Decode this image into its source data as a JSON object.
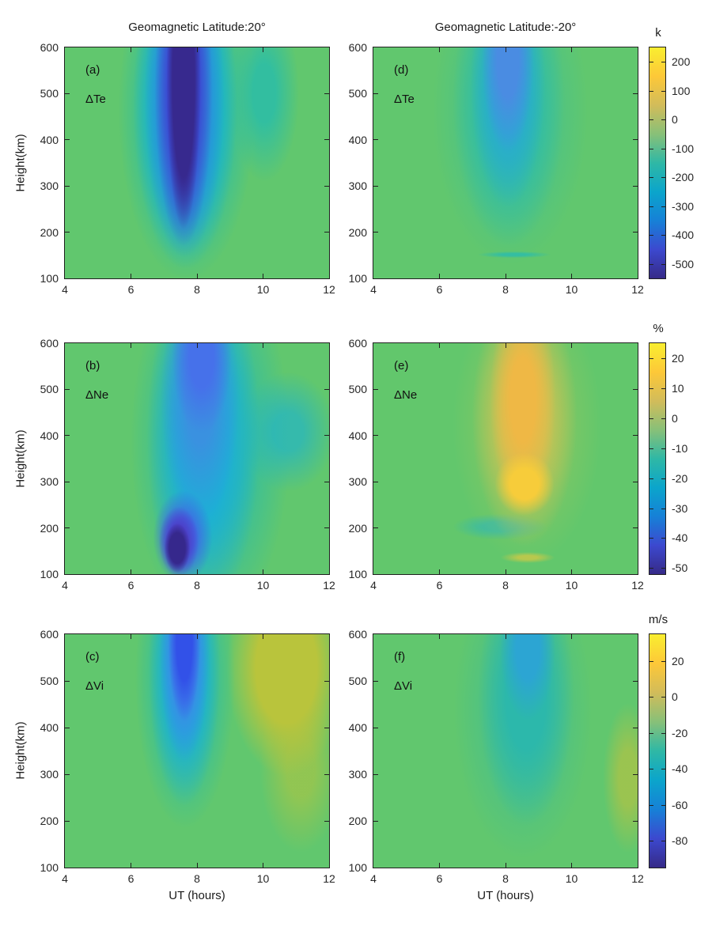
{
  "figure": {
    "titles": {
      "left": "Geomagnetic Latitude:20°",
      "right": "Geomagnetic Latitude:-20°"
    },
    "xlabel": "UT (hours)",
    "ylabel": "Height(km)",
    "x_ticks": [
      "4",
      "6",
      "8",
      "10",
      "12"
    ],
    "y_ticks": [
      "600",
      "500",
      "400",
      "300",
      "200",
      "100"
    ]
  },
  "panels": [
    {
      "tag": "(a)",
      "variable": "ΔTe"
    },
    {
      "tag": "(b)",
      "variable": "ΔNe"
    },
    {
      "tag": "(c)",
      "variable": "ΔVi"
    },
    {
      "tag": "(d)",
      "variable": "ΔTe"
    },
    {
      "tag": "(e)",
      "variable": "ΔNe"
    },
    {
      "tag": "(f)",
      "variable": "ΔVi"
    }
  ],
  "colorbars": [
    {
      "unit": "k",
      "max": 250,
      "min": -550,
      "ticks": [
        "200",
        "100",
        "0",
        "-100",
        "-200",
        "-300",
        "-400",
        "-500"
      ],
      "tick_values": [
        200,
        100,
        0,
        -100,
        -200,
        -300,
        -400,
        -500
      ]
    },
    {
      "unit": "%",
      "max": 25,
      "min": -52,
      "ticks": [
        "20",
        "10",
        "0",
        "-10",
        "-20",
        "-30",
        "-40",
        "-50"
      ],
      "tick_values": [
        20,
        10,
        0,
        -10,
        -20,
        -30,
        -40,
        -50
      ]
    },
    {
      "unit": "m/s",
      "max": 35,
      "min": -95,
      "ticks": [
        "20",
        "0",
        "-20",
        "-40",
        "-60",
        "-80"
      ],
      "tick_values": [
        20,
        0,
        -20,
        -40,
        -60,
        -80
      ]
    }
  ],
  "colors": {
    "background": "#ffffff",
    "zero_level_green": "#61c76e",
    "axis": "#202020",
    "text": "#262626",
    "colormap": "parula"
  },
  "chart_data": [
    {
      "type": "heatmap",
      "panel": "(a)",
      "title": "Geomagnetic Latitude:20°",
      "variable": "ΔTe",
      "unit": "k",
      "colormap": "parula",
      "xlabel": "UT (hours)",
      "ylabel": "Height(km)",
      "xlim": [
        4,
        12
      ],
      "ylim": [
        100,
        600
      ],
      "caxis": [
        -550,
        250
      ],
      "x": [
        4,
        5,
        6,
        7,
        7.5,
        8,
        9,
        10,
        11,
        12
      ],
      "y": [
        100,
        200,
        300,
        400,
        500,
        600
      ],
      "values": [
        [
          0,
          0,
          0,
          -10,
          -20,
          -10,
          0,
          0,
          0,
          0
        ],
        [
          0,
          0,
          -50,
          -350,
          -450,
          -350,
          -80,
          -10,
          0,
          0
        ],
        [
          0,
          0,
          -60,
          -450,
          -550,
          -400,
          -100,
          -20,
          0,
          0
        ],
        [
          0,
          0,
          -70,
          -450,
          -550,
          -400,
          -120,
          -40,
          -10,
          0
        ],
        [
          0,
          0,
          -70,
          -430,
          -540,
          -400,
          -130,
          -60,
          -20,
          0
        ],
        [
          0,
          0,
          -70,
          -420,
          -540,
          -400,
          -140,
          -60,
          -20,
          0
        ]
      ]
    },
    {
      "type": "heatmap",
      "panel": "(b)",
      "title": "Geomagnetic Latitude:20°",
      "variable": "ΔNe",
      "unit": "%",
      "colormap": "parula",
      "xlabel": "UT (hours)",
      "ylabel": "Height(km)",
      "xlim": [
        4,
        12
      ],
      "ylim": [
        100,
        600
      ],
      "caxis": [
        -52,
        25
      ],
      "x": [
        4,
        5,
        6,
        7,
        7.5,
        8,
        9,
        10,
        11,
        12
      ],
      "y": [
        100,
        200,
        300,
        400,
        500,
        600
      ],
      "values": [
        [
          0,
          0,
          -5,
          -40,
          -50,
          -20,
          -8,
          -3,
          0,
          0
        ],
        [
          0,
          0,
          -10,
          -35,
          -40,
          -25,
          -12,
          -8,
          -3,
          0
        ],
        [
          0,
          -3,
          -12,
          -20,
          -22,
          -22,
          -15,
          -10,
          -5,
          -3
        ],
        [
          0,
          -3,
          -12,
          -25,
          -28,
          -30,
          -20,
          -12,
          -8,
          -5
        ],
        [
          0,
          -3,
          -10,
          -28,
          -32,
          -33,
          -22,
          -12,
          -8,
          -5
        ],
        [
          0,
          -3,
          -10,
          -25,
          -30,
          -30,
          -20,
          -12,
          -8,
          -5
        ]
      ]
    },
    {
      "type": "heatmap",
      "panel": "(c)",
      "title": "Geomagnetic Latitude:20°",
      "variable": "ΔVi",
      "unit": "m/s",
      "colormap": "parula",
      "xlabel": "UT (hours)",
      "ylabel": "Height(km)",
      "xlim": [
        4,
        12
      ],
      "ylim": [
        100,
        600
      ],
      "caxis": [
        -95,
        35
      ],
      "x": [
        4,
        5,
        6,
        7,
        7.5,
        8,
        9,
        10,
        11,
        12
      ],
      "y": [
        100,
        200,
        300,
        400,
        500,
        600
      ],
      "values": [
        [
          0,
          0,
          0,
          -3,
          -5,
          -3,
          0,
          0,
          0,
          0
        ],
        [
          0,
          0,
          -5,
          -25,
          -30,
          -20,
          -5,
          2,
          2,
          0
        ],
        [
          0,
          0,
          -8,
          -35,
          -45,
          -30,
          -8,
          8,
          8,
          5
        ],
        [
          0,
          0,
          -10,
          -50,
          -60,
          -40,
          -5,
          10,
          10,
          5
        ],
        [
          0,
          0,
          -12,
          -60,
          -75,
          -50,
          0,
          15,
          12,
          5
        ],
        [
          0,
          0,
          -15,
          -70,
          -85,
          -55,
          5,
          18,
          15,
          5
        ]
      ]
    },
    {
      "type": "heatmap",
      "panel": "(d)",
      "title": "Geomagnetic Latitude:-20°",
      "variable": "ΔTe",
      "unit": "k",
      "colormap": "parula",
      "xlabel": "UT (hours)",
      "ylabel": "Height(km)",
      "xlim": [
        4,
        12
      ],
      "ylim": [
        100,
        600
      ],
      "caxis": [
        -550,
        250
      ],
      "x": [
        4,
        5,
        6,
        7,
        7.5,
        8,
        9,
        10,
        11,
        12
      ],
      "y": [
        100,
        200,
        300,
        400,
        500,
        600
      ],
      "values": [
        [
          0,
          0,
          0,
          -10,
          -20,
          -20,
          -10,
          0,
          0,
          0
        ],
        [
          0,
          0,
          -20,
          -60,
          -80,
          -80,
          -50,
          -20,
          0,
          0
        ],
        [
          0,
          -10,
          -40,
          -120,
          -150,
          -140,
          -80,
          -30,
          -10,
          0
        ],
        [
          0,
          -10,
          -50,
          -180,
          -220,
          -200,
          -120,
          -50,
          -10,
          0
        ],
        [
          0,
          -10,
          -60,
          -230,
          -280,
          -250,
          -150,
          -60,
          -20,
          0
        ],
        [
          0,
          -10,
          -70,
          -280,
          -320,
          -280,
          -170,
          -70,
          -20,
          0
        ]
      ]
    },
    {
      "type": "heatmap",
      "panel": "(e)",
      "title": "Geomagnetic Latitude:-20°",
      "variable": "ΔNe",
      "unit": "%",
      "colormap": "parula",
      "xlabel": "UT (hours)",
      "ylabel": "Height(km)",
      "xlim": [
        4,
        12
      ],
      "ylim": [
        100,
        600
      ],
      "caxis": [
        -52,
        25
      ],
      "x": [
        4,
        5,
        6,
        7,
        7.5,
        8,
        9,
        10,
        11,
        12
      ],
      "y": [
        100,
        200,
        300,
        400,
        500,
        600
      ],
      "values": [
        [
          0,
          0,
          0,
          2,
          5,
          5,
          3,
          0,
          0,
          0
        ],
        [
          0,
          0,
          -5,
          -10,
          -10,
          -8,
          -3,
          2,
          0,
          0
        ],
        [
          0,
          2,
          5,
          12,
          20,
          25,
          18,
          8,
          2,
          0
        ],
        [
          0,
          2,
          6,
          12,
          18,
          20,
          15,
          6,
          0,
          -2
        ],
        [
          0,
          2,
          8,
          14,
          18,
          20,
          15,
          6,
          0,
          -2
        ],
        [
          0,
          2,
          6,
          12,
          16,
          15,
          10,
          5,
          0,
          0
        ]
      ]
    },
    {
      "type": "heatmap",
      "panel": "(f)",
      "title": "Geomagnetic Latitude:-20°",
      "variable": "ΔVi",
      "unit": "m/s",
      "colormap": "parula",
      "xlabel": "UT (hours)",
      "ylabel": "Height(km)",
      "xlim": [
        4,
        12
      ],
      "ylim": [
        100,
        600
      ],
      "caxis": [
        -95,
        35
      ],
      "x": [
        4,
        5,
        6,
        7,
        7.5,
        8,
        9,
        10,
        11,
        12
      ],
      "y": [
        100,
        200,
        300,
        400,
        500,
        600
      ],
      "values": [
        [
          0,
          0,
          0,
          -2,
          -3,
          -3,
          -2,
          0,
          0,
          0
        ],
        [
          0,
          0,
          -5,
          -12,
          -15,
          -15,
          -12,
          -5,
          2,
          0
        ],
        [
          0,
          0,
          -8,
          -15,
          -20,
          -22,
          -18,
          -8,
          5,
          2
        ],
        [
          0,
          0,
          -8,
          -18,
          -25,
          -28,
          -22,
          -10,
          2,
          0
        ],
        [
          0,
          -2,
          -10,
          -20,
          -30,
          -35,
          -28,
          -12,
          0,
          0
        ],
        [
          0,
          -2,
          -10,
          -25,
          -38,
          -45,
          -35,
          -15,
          -5,
          0
        ]
      ]
    }
  ]
}
